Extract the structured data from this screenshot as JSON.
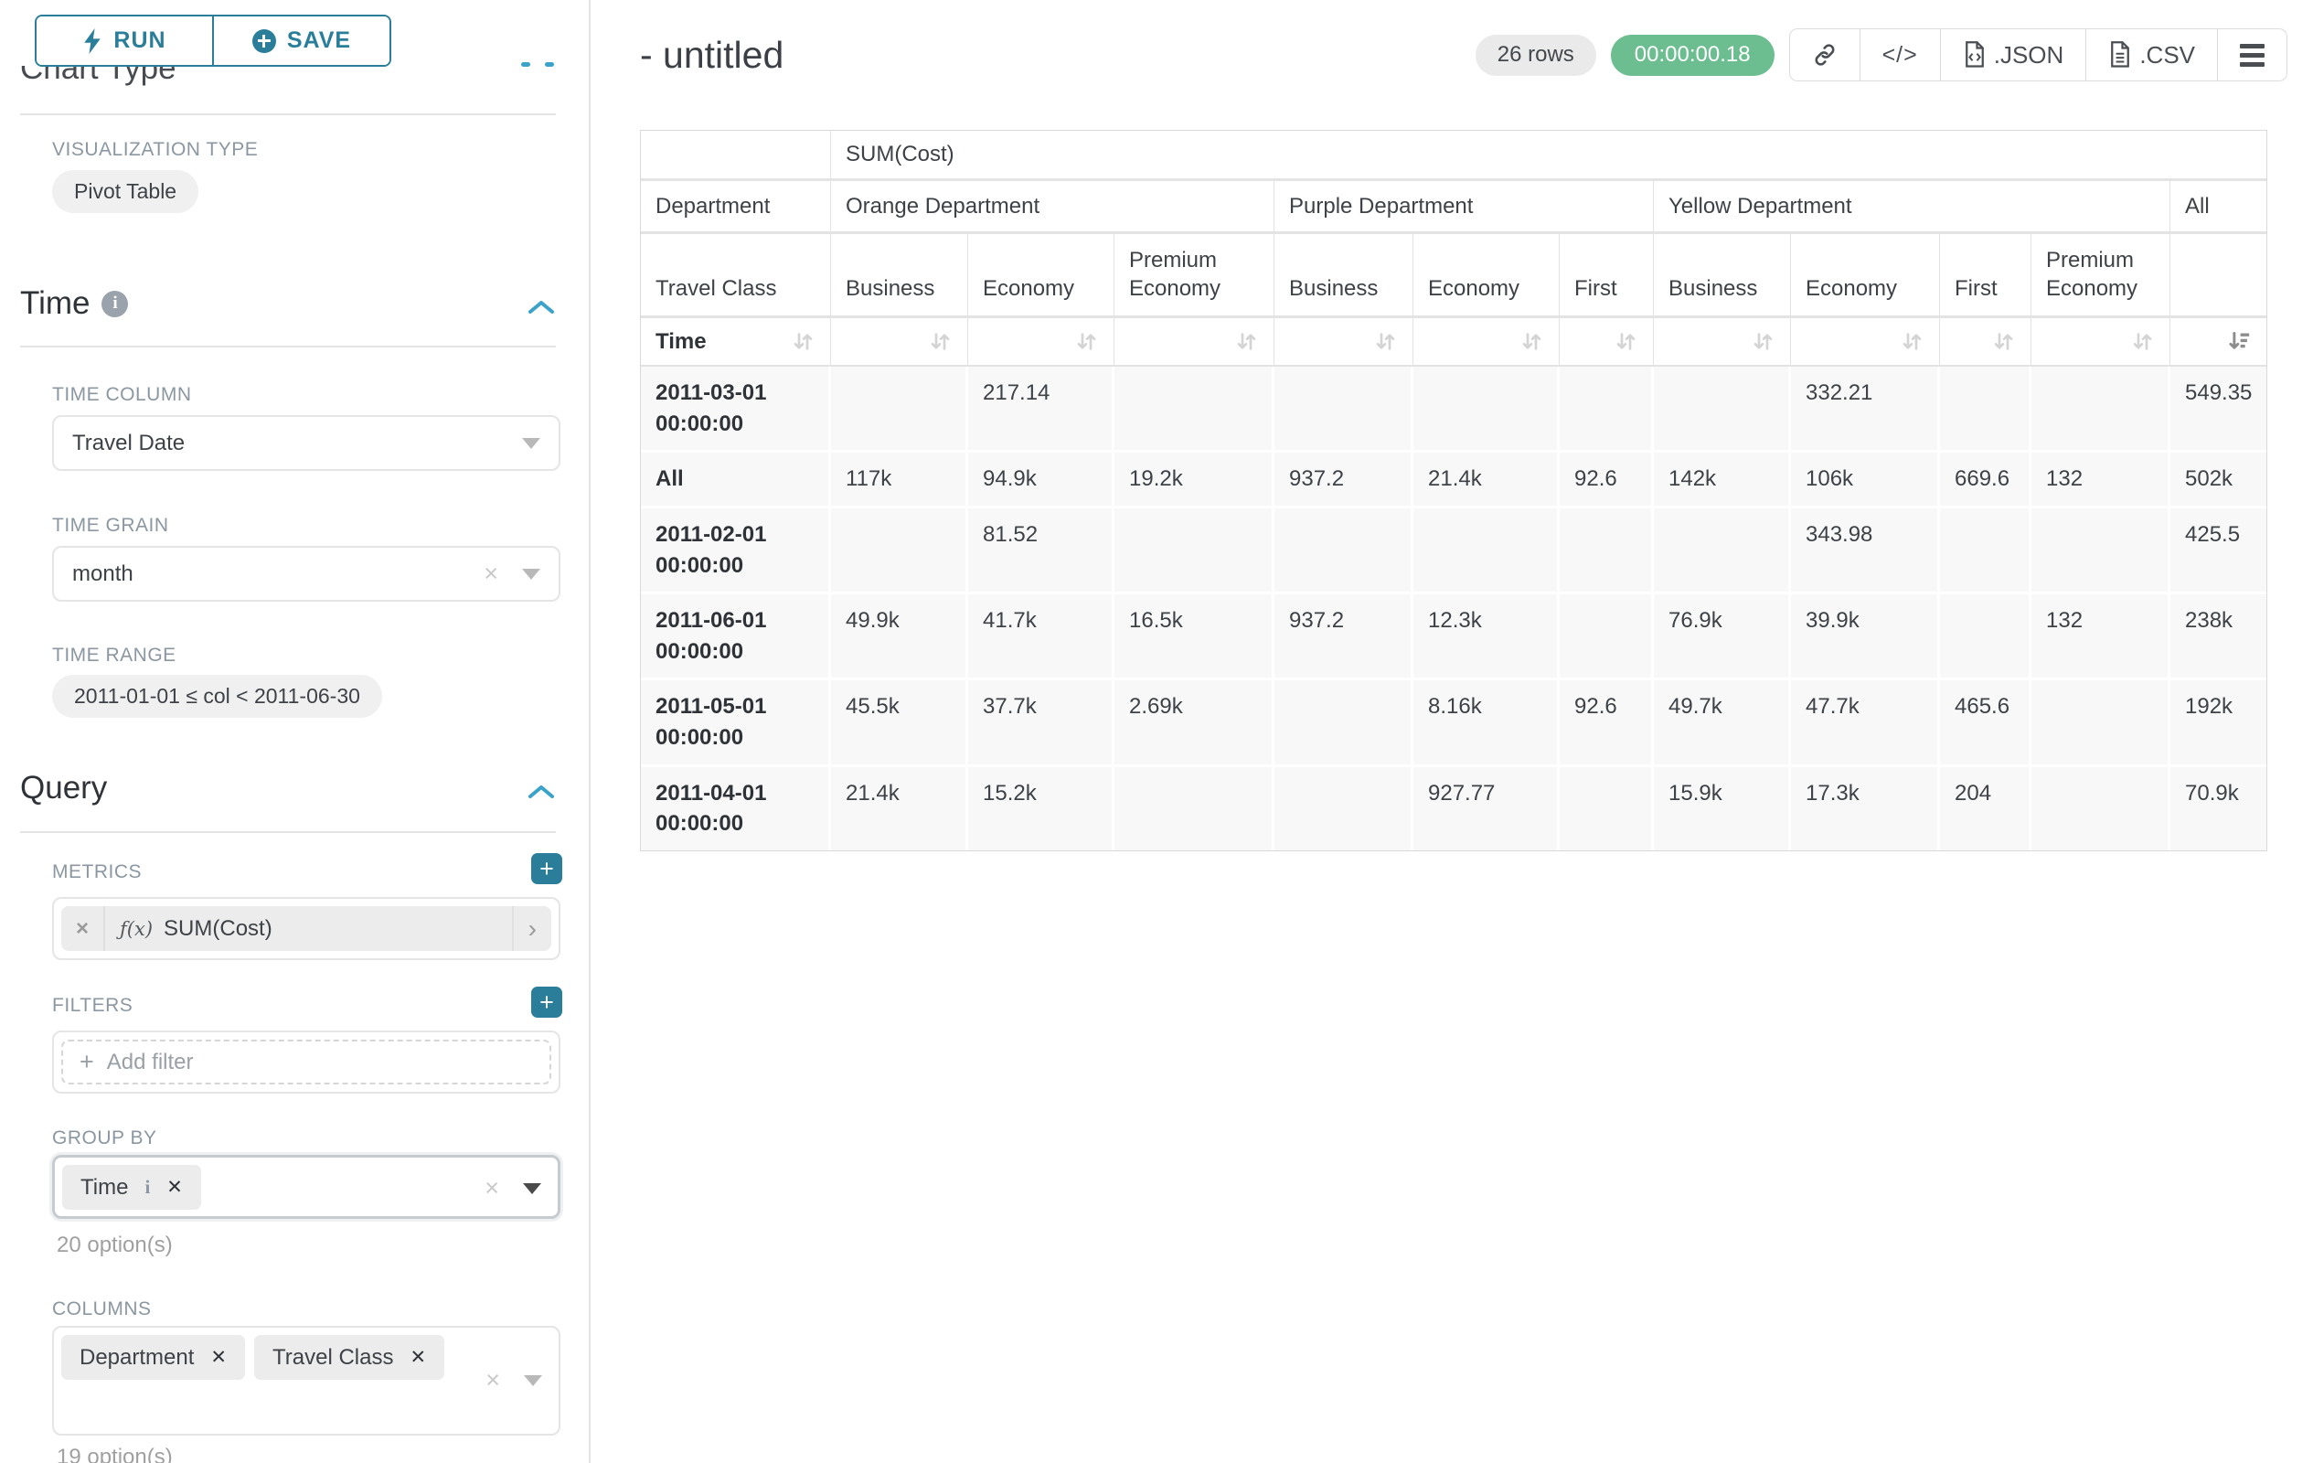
{
  "sidebar": {
    "run_label": "RUN",
    "save_label": "SAVE",
    "chart_type_heading": "Chart Type",
    "visualization_type_label": "VISUALIZATION TYPE",
    "visualization_type_value": "Pivot Table",
    "time_section": {
      "title": "Time",
      "time_column_label": "TIME COLUMN",
      "time_column_value": "Travel Date",
      "time_grain_label": "TIME GRAIN",
      "time_grain_value": "month",
      "time_range_label": "TIME RANGE",
      "time_range_value": "2011-01-01 ≤ col < 2011-06-30"
    },
    "query_section": {
      "title": "Query",
      "metrics_label": "METRICS",
      "metric_fx": "ƒ(x)",
      "metric_value": "SUM(Cost)",
      "filters_label": "FILTERS",
      "add_filter_label": "Add filter",
      "group_by_label": "GROUP BY",
      "group_by_values": [
        "Time"
      ],
      "group_by_hint": "20 option(s)",
      "columns_label": "COLUMNS",
      "columns_values": [
        "Department",
        "Travel Class"
      ],
      "columns_hint": "19 option(s)"
    }
  },
  "header": {
    "title": "- untitled",
    "row_count_badge": "26 rows",
    "timer_badge": "00:00:00.18",
    "json_label": ".JSON",
    "csv_label": ".CSV"
  },
  "icons": {
    "run": "lightning-bolt",
    "save": "plus-circle",
    "section_info": "info-circle",
    "section_collapse": "chevron-up",
    "select_clear": "x",
    "select_open": "caret-down",
    "metric_remove": "x",
    "metric_expand": "chevron-right",
    "share": "link",
    "embed": "code",
    "export_json": "file-code",
    "export_csv": "file-lines",
    "menu": "hamburger",
    "sort_inactive": "arrows-up-down",
    "sort_active_desc": "sort-amount-down"
  },
  "colors": {
    "teal_primary": "#2a7e99",
    "chevron_blue": "#3ba2c9",
    "timer_green": "#6cbe90",
    "label_gray": "#8b97a1",
    "cell_bg": "#f8f8f8"
  },
  "chart_data": {
    "type": "table",
    "subtype": "pivot",
    "metric_header": "SUM(Cost)",
    "row_header_labels": [
      "Department",
      "Travel Class",
      "Time"
    ],
    "column_groups": [
      {
        "name": "Orange Department",
        "cols": [
          "Business",
          "Economy",
          "Premium Economy"
        ]
      },
      {
        "name": "Purple Department",
        "cols": [
          "Business",
          "Economy",
          "First"
        ]
      },
      {
        "name": "Yellow Department",
        "cols": [
          "Business",
          "Economy",
          "First",
          "Premium Economy"
        ]
      },
      {
        "name": "All",
        "cols": [
          ""
        ]
      }
    ],
    "sorted_column": "All",
    "sort_direction": "descending",
    "rows": [
      {
        "time": "2011-03-01 00:00:00",
        "values": [
          "",
          "217.14",
          "",
          "",
          "",
          "",
          "",
          "332.21",
          "",
          "",
          "549.35"
        ]
      },
      {
        "time": "All",
        "values": [
          "117k",
          "94.9k",
          "19.2k",
          "937.2",
          "21.4k",
          "92.6",
          "142k",
          "106k",
          "669.6",
          "132",
          "502k"
        ]
      },
      {
        "time": "2011-02-01 00:00:00",
        "values": [
          "",
          "81.52",
          "",
          "",
          "",
          "",
          "",
          "343.98",
          "",
          "",
          "425.5"
        ]
      },
      {
        "time": "2011-06-01 00:00:00",
        "values": [
          "49.9k",
          "41.7k",
          "16.5k",
          "937.2",
          "12.3k",
          "",
          "76.9k",
          "39.9k",
          "",
          "132",
          "238k"
        ]
      },
      {
        "time": "2011-05-01 00:00:00",
        "values": [
          "45.5k",
          "37.7k",
          "2.69k",
          "",
          "8.16k",
          "92.6",
          "49.7k",
          "47.7k",
          "465.6",
          "",
          "192k"
        ]
      },
      {
        "time": "2011-04-01 00:00:00",
        "values": [
          "21.4k",
          "15.2k",
          "",
          "",
          "927.77",
          "",
          "15.9k",
          "17.3k",
          "204",
          "",
          "70.9k"
        ]
      }
    ]
  }
}
